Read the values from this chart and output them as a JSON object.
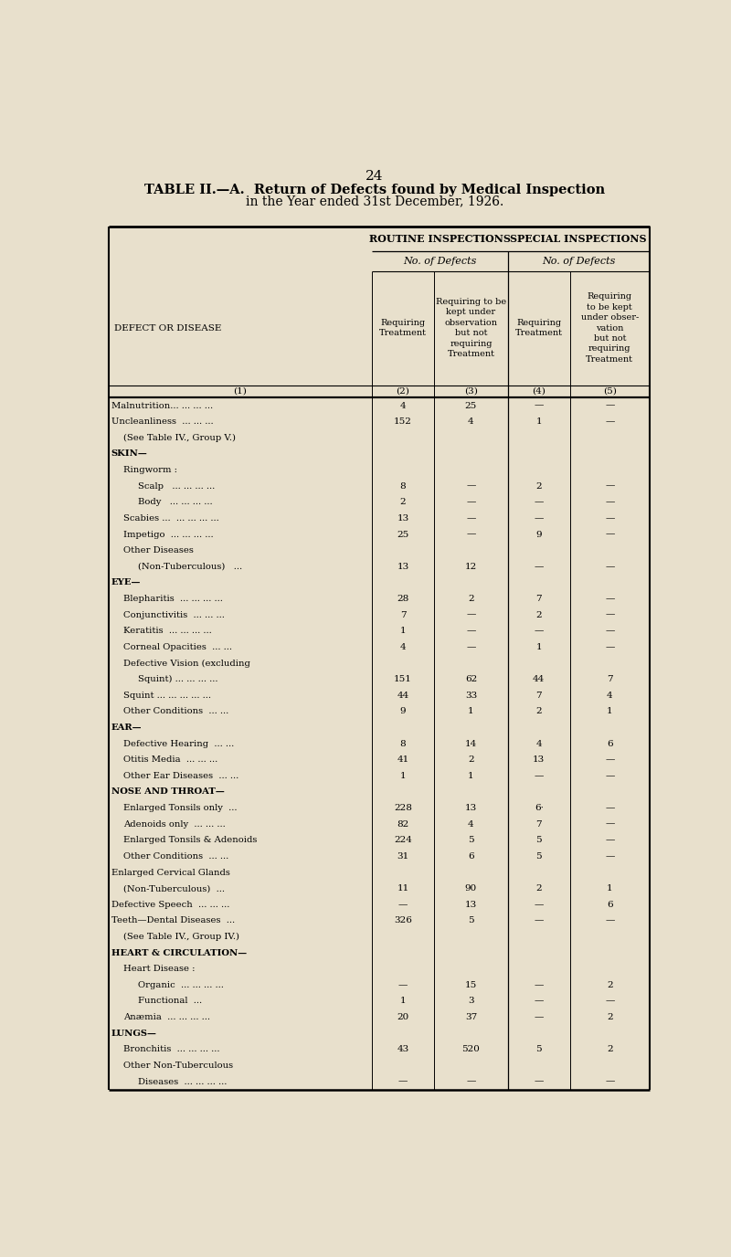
{
  "page_number": "24",
  "title_line1": "TABLE II.—A.  Return of Defects found by Medical Inspection",
  "title_line2": "in the Year ended 31st December, 1926.",
  "bg_color": "#e8e0cc",
  "header_routine": "ROUTINE INSPECTIONS",
  "header_special": "SPECIAL INSPECTIONS",
  "header_no_defects": "No. of Defects",
  "header_defect_disease": "DEFECT OR DISEASE",
  "col1_header": "Requiring\nTreatment",
  "col2_header": "Requiring to be\nkept under\nobservation\nbut not\nrequiring\nTreatment",
  "col3_header": "Requiring\nTreatment",
  "col4_header": "Requiring\nto be kept\nunder obser-\nvation\nbut not\nrequiring\nTreatment",
  "rows": [
    {
      "label": "Malnutrition... ... ... ...",
      "indent": 0,
      "bold": false,
      "c2": "4",
      "c3": "25",
      "c4": "—",
      "c5": "—"
    },
    {
      "label": "Uncleanliness  ... ... ...",
      "indent": 0,
      "bold": false,
      "c2": "152",
      "c3": "4",
      "c4": "1",
      "c5": "—"
    },
    {
      "label": "(See Table IV., Group V.)",
      "indent": 1,
      "bold": false,
      "c2": "",
      "c3": "",
      "c4": "",
      "c5": ""
    },
    {
      "label": "SKIN—",
      "indent": 0,
      "bold": true,
      "c2": "",
      "c3": "",
      "c4": "",
      "c5": ""
    },
    {
      "label": "Ringworm :",
      "indent": 1,
      "bold": false,
      "c2": "",
      "c3": "",
      "c4": "",
      "c5": ""
    },
    {
      "label": "Scalp   ... ... ... ...",
      "indent": 2,
      "bold": false,
      "c2": "8",
      "c3": "—",
      "c4": "2",
      "c5": "—"
    },
    {
      "label": "Body   ... ... ... ...",
      "indent": 2,
      "bold": false,
      "c2": "2",
      "c3": "—",
      "c4": "—",
      "c5": "—"
    },
    {
      "label": "Scabies ...  ... ... ... ...",
      "indent": 1,
      "bold": false,
      "c2": "13",
      "c3": "—",
      "c4": "—",
      "c5": "—"
    },
    {
      "label": "Impetigo  ... ... ... ...",
      "indent": 1,
      "bold": false,
      "c2": "25",
      "c3": "—",
      "c4": "9",
      "c5": "—"
    },
    {
      "label": "Other Diseases",
      "indent": 1,
      "bold": false,
      "c2": "",
      "c3": "",
      "c4": "",
      "c5": ""
    },
    {
      "label": "(Non-Tuberculous)   ...",
      "indent": 2,
      "bold": false,
      "c2": "13",
      "c3": "12",
      "c4": "—",
      "c5": "—"
    },
    {
      "label": "EYE—",
      "indent": 0,
      "bold": true,
      "c2": "",
      "c3": "",
      "c4": "",
      "c5": ""
    },
    {
      "label": "Blepharitis  ... ... ... ...",
      "indent": 1,
      "bold": false,
      "c2": "28",
      "c3": "2",
      "c4": "7",
      "c5": "—"
    },
    {
      "label": "Conjunctivitis  ... ... ...",
      "indent": 1,
      "bold": false,
      "c2": "7",
      "c3": "—",
      "c4": "2",
      "c5": "—"
    },
    {
      "label": "Keratitis  ... ... ... ...",
      "indent": 1,
      "bold": false,
      "c2": "1",
      "c3": "—",
      "c4": "—",
      "c5": "—"
    },
    {
      "label": "Corneal Opacities  ... ...",
      "indent": 1,
      "bold": false,
      "c2": "4",
      "c3": "—",
      "c4": "1",
      "c5": "—"
    },
    {
      "label": "Defective Vision (excluding",
      "indent": 1,
      "bold": false,
      "c2": "",
      "c3": "",
      "c4": "",
      "c5": ""
    },
    {
      "label": "Squint) ... ... ... ...",
      "indent": 2,
      "bold": false,
      "c2": "151",
      "c3": "62",
      "c4": "44",
      "c5": "7"
    },
    {
      "label": "Squint ... ... ... ... ...",
      "indent": 1,
      "bold": false,
      "c2": "44",
      "c3": "33",
      "c4": "7",
      "c5": "4"
    },
    {
      "label": "Other Conditions  ... ...",
      "indent": 1,
      "bold": false,
      "c2": "9",
      "c3": "1",
      "c4": "2",
      "c5": "1"
    },
    {
      "label": "EAR—",
      "indent": 0,
      "bold": true,
      "c2": "",
      "c3": "",
      "c4": "",
      "c5": ""
    },
    {
      "label": "Defective Hearing  ... ...",
      "indent": 1,
      "bold": false,
      "c2": "8",
      "c3": "14",
      "c4": "4",
      "c5": "6"
    },
    {
      "label": "Otitis Media  ... ... ...",
      "indent": 1,
      "bold": false,
      "c2": "41",
      "c3": "2",
      "c4": "13",
      "c5": "—"
    },
    {
      "label": "Other Ear Diseases  ... ...",
      "indent": 1,
      "bold": false,
      "c2": "1",
      "c3": "1",
      "c4": "—",
      "c5": "—"
    },
    {
      "label": "NOSE AND THROAT—",
      "indent": 0,
      "bold": true,
      "c2": "",
      "c3": "",
      "c4": "",
      "c5": ""
    },
    {
      "label": "Enlarged Tonsils only  ...",
      "indent": 1,
      "bold": false,
      "c2": "228",
      "c3": "13",
      "c4": "6·",
      "c5": "—"
    },
    {
      "label": "Adenoids only  ... ... ...",
      "indent": 1,
      "bold": false,
      "c2": "82",
      "c3": "4",
      "c4": "7",
      "c5": "—"
    },
    {
      "label": "Enlarged Tonsils & Adenoids",
      "indent": 1,
      "bold": false,
      "c2": "224",
      "c3": "5",
      "c4": "5",
      "c5": "—"
    },
    {
      "label": "Other Conditions  ... ...",
      "indent": 1,
      "bold": false,
      "c2": "31",
      "c3": "6",
      "c4": "5",
      "c5": "—"
    },
    {
      "label": "Enlarged Cervical Glands",
      "indent": 0,
      "bold": false,
      "c2": "",
      "c3": "",
      "c4": "",
      "c5": ""
    },
    {
      "label": "(Non-Tuberculous)  ...",
      "indent": 1,
      "bold": false,
      "c2": "11",
      "c3": "90",
      "c4": "2",
      "c5": "1"
    },
    {
      "label": "Defective Speech  ... ... ...",
      "indent": 0,
      "bold": false,
      "c2": "—",
      "c3": "13",
      "c4": "—",
      "c5": "6"
    },
    {
      "label": "Teeth—Dental Diseases  ...",
      "indent": 0,
      "bold": false,
      "c2": "326",
      "c3": "5",
      "c4": "—",
      "c5": "—"
    },
    {
      "label": "(See Table IV., Group IV.)",
      "indent": 1,
      "bold": false,
      "c2": "",
      "c3": "",
      "c4": "",
      "c5": ""
    },
    {
      "label": "HEART & CIRCULATION—",
      "indent": 0,
      "bold": true,
      "c2": "",
      "c3": "",
      "c4": "",
      "c5": ""
    },
    {
      "label": "Heart Disease :",
      "indent": 1,
      "bold": false,
      "c2": "",
      "c3": "",
      "c4": "",
      "c5": ""
    },
    {
      "label": "Organic  ... ... ... ...",
      "indent": 2,
      "bold": false,
      "c2": "—",
      "c3": "15",
      "c4": "—",
      "c5": "2"
    },
    {
      "label": "Functional  ...",
      "indent": 2,
      "bold": false,
      "c2": "1",
      "c3": "3",
      "c4": "—",
      "c5": "—"
    },
    {
      "label": "Anæmia  ... ... ... ...",
      "indent": 1,
      "bold": false,
      "c2": "20",
      "c3": "37",
      "c4": "—",
      "c5": "2"
    },
    {
      "label": "LUNGS—",
      "indent": 0,
      "bold": true,
      "c2": "",
      "c3": "",
      "c4": "",
      "c5": ""
    },
    {
      "label": "Bronchitis  ... ... ... ...",
      "indent": 1,
      "bold": false,
      "c2": "43",
      "c3": "520",
      "c4": "5",
      "c5": "2"
    },
    {
      "label": "Other Non-Tuberculous",
      "indent": 1,
      "bold": false,
      "c2": "",
      "c3": "",
      "c4": "",
      "c5": ""
    },
    {
      "label": "Diseases  ... ... ... ...",
      "indent": 2,
      "bold": false,
      "c2": "—",
      "c3": "—",
      "c4": "—",
      "c5": "—"
    }
  ]
}
